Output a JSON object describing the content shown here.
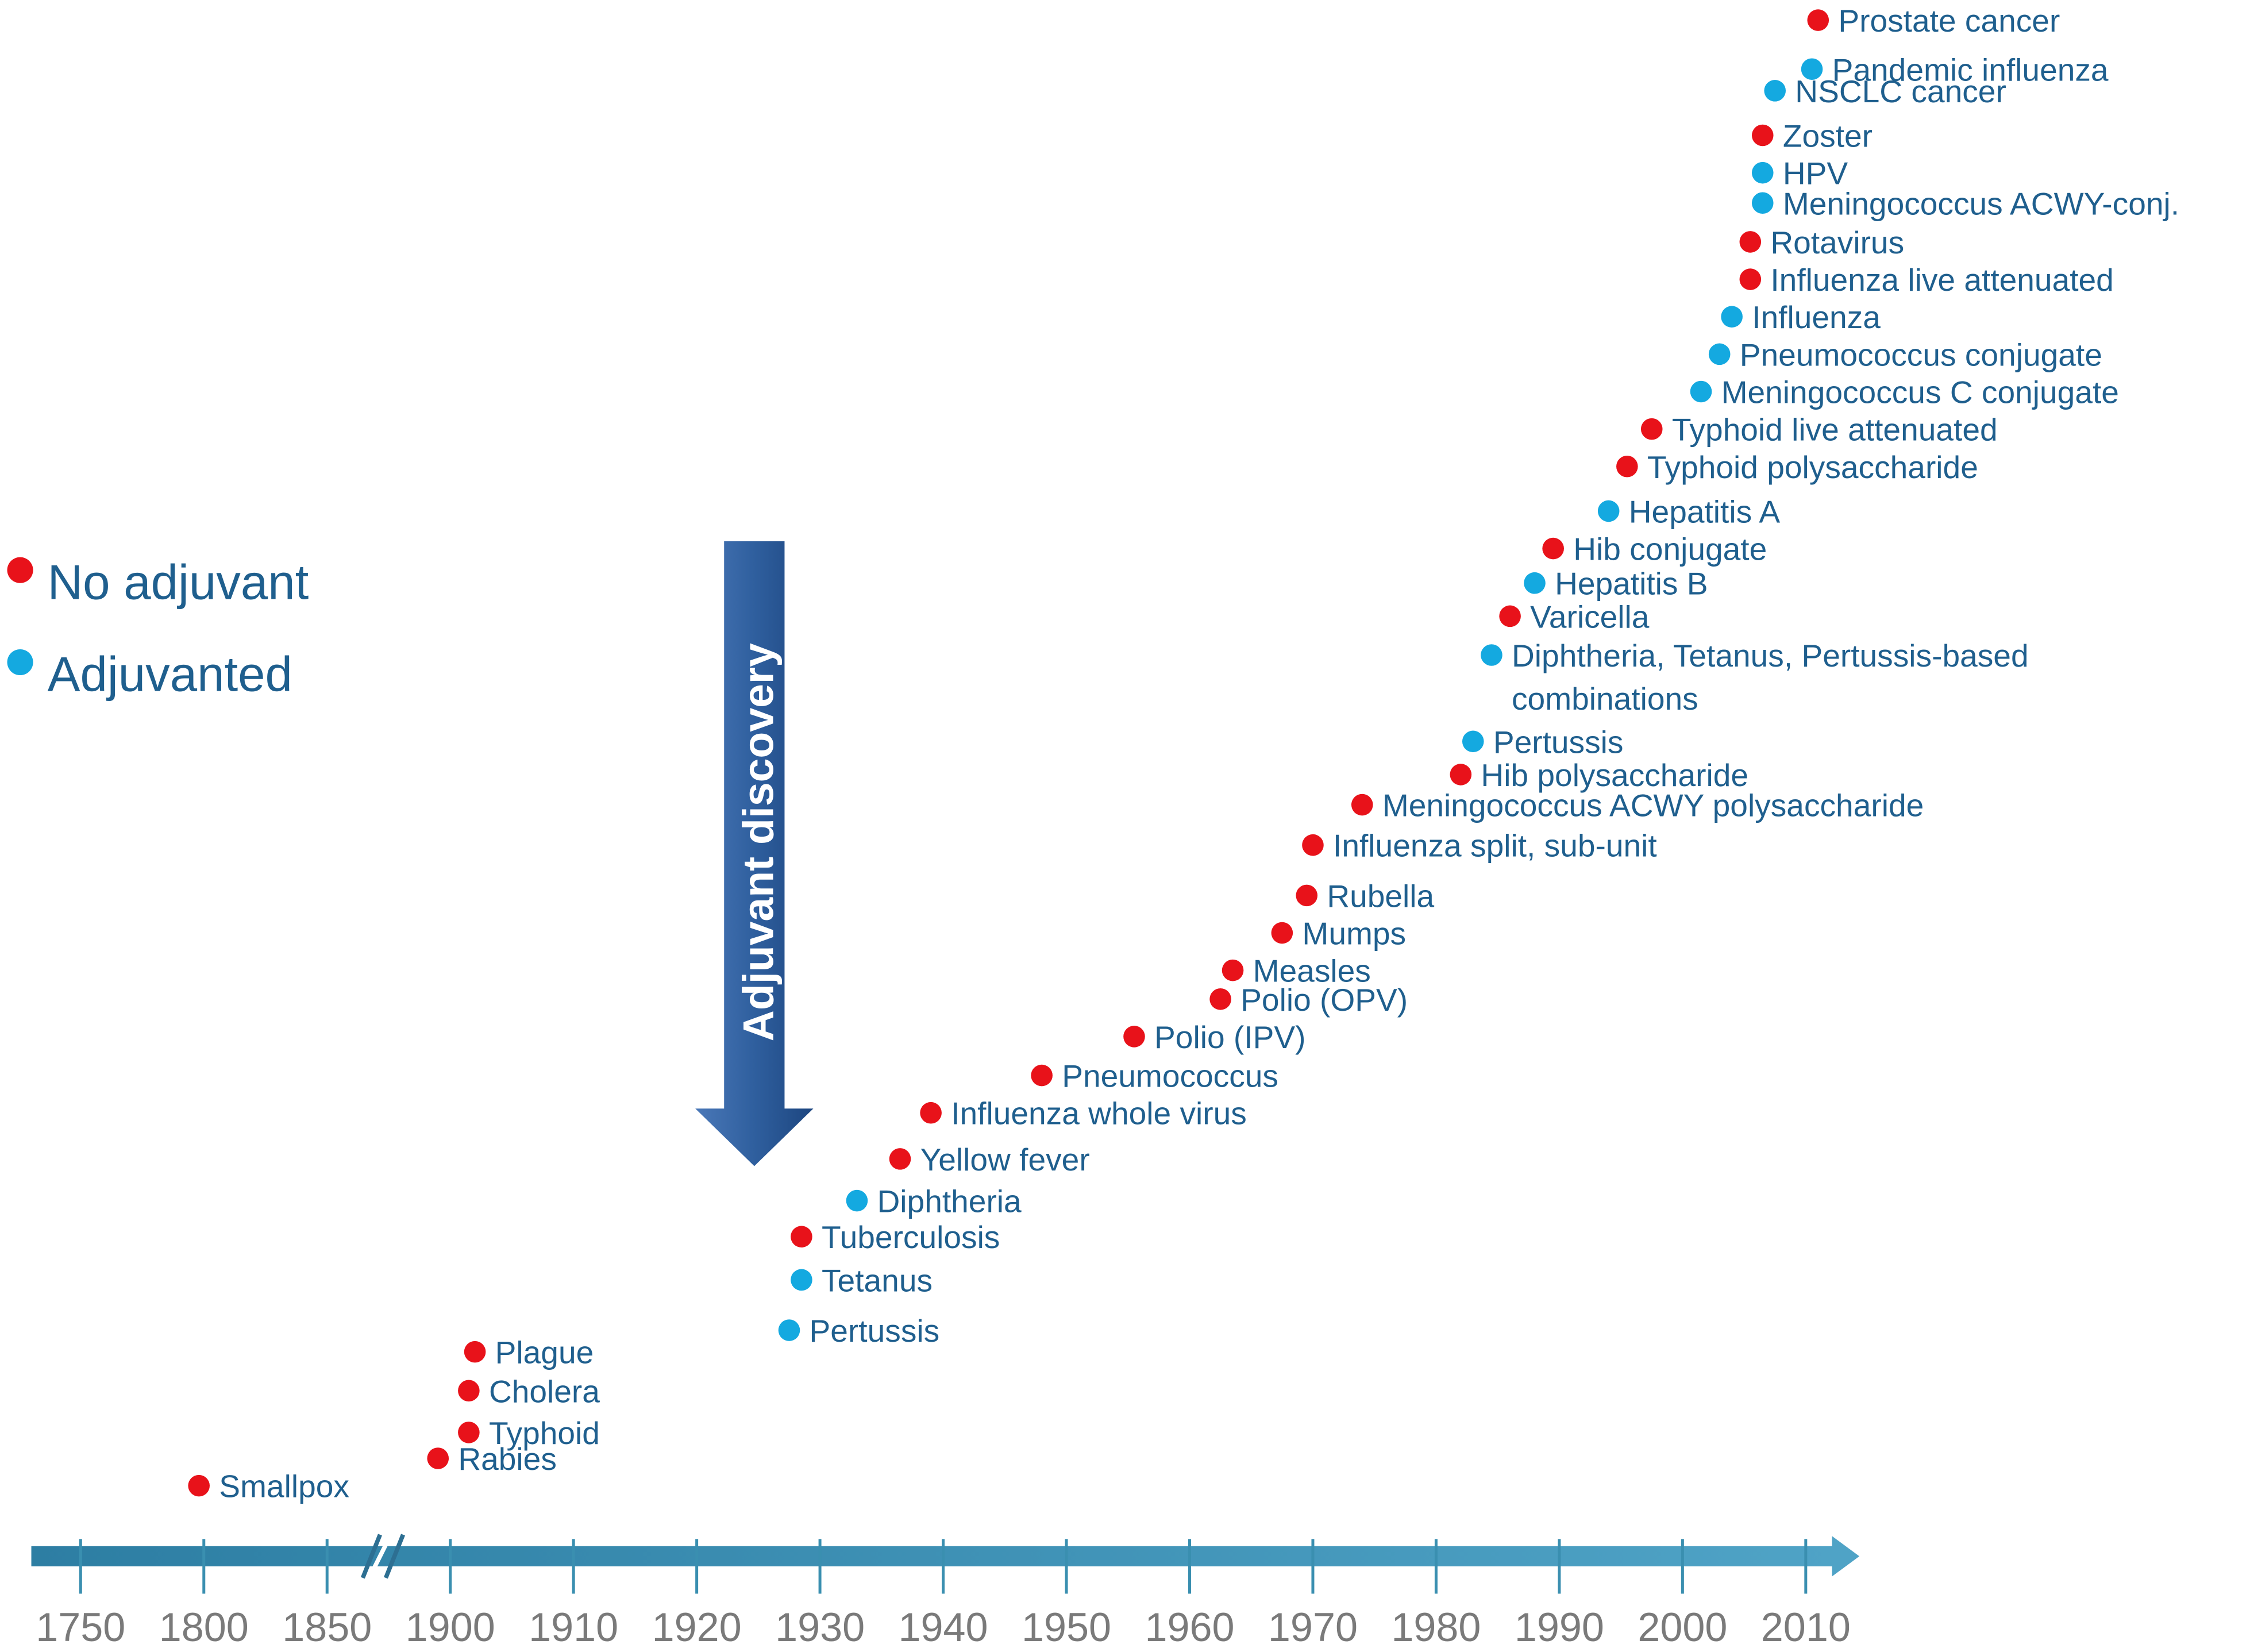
{
  "chart_data": {
    "type": "timeline",
    "annotation": "Adjuvant discovery",
    "xlim": [
      1730,
      2014
    ],
    "xticks": [
      1750,
      1800,
      1850,
      1900,
      1910,
      1920,
      1930,
      1940,
      1950,
      1960,
      1970,
      1980,
      1990,
      2000,
      2010
    ],
    "series": [
      {
        "name": "No adjuvant",
        "color": "#e8121a",
        "labels": [
          "Smallpox",
          "Rabies",
          "Typhoid",
          "Cholera",
          "Plague",
          "Tuberculosis",
          "Yellow fever",
          "Influenza whole virus",
          "Pneumococcus",
          "Polio (IPV)",
          "Polio (OPV)",
          "Measles",
          "Mumps",
          "Rubella",
          "Influenza split, sub-unit",
          "Meningococcus ACWY polysaccharide",
          "Hib polysaccharide",
          "Varicella",
          "Hib conjugate",
          "Typhoid polysaccharide",
          "Typhoid live attenuated",
          "Influenza live attenuated",
          "Rotavirus",
          "Zoster",
          "Prostate cancer"
        ],
        "values": [
          1798,
          1895,
          1901.5,
          1901.5,
          1902,
          1928.5,
          1936.5,
          1939,
          1948,
          1955.5,
          1962.5,
          1963.5,
          1967.5,
          1969.5,
          1970,
          1974,
          1982,
          1986,
          1989.5,
          1995.5,
          1997.5,
          2005.5,
          2005.5,
          2006.5,
          2011
        ]
      },
      {
        "name": "Adjuvanted",
        "color": "#14a9e0",
        "labels": [
          "Pertussis",
          "Tetanus",
          "Diphtheria",
          "Pertussis",
          "Diphtheria, Tetanus, Pertussis-based combinations",
          "Hepatitis B",
          "Hepatitis A",
          "Meningococcus C conjugate",
          "Pneumococcus conjugate",
          "Influenza",
          "Meningococcus ACWY-conj.",
          "HPV",
          "NSCLC cancer",
          "Pandemic influenza"
        ],
        "values": [
          1927.5,
          1928.5,
          1933,
          1983,
          1984.5,
          1988,
          1994,
          2001.5,
          2003,
          2004,
          2006.5,
          2006.5,
          2007.5,
          2010.5
        ]
      }
    ]
  }
}
